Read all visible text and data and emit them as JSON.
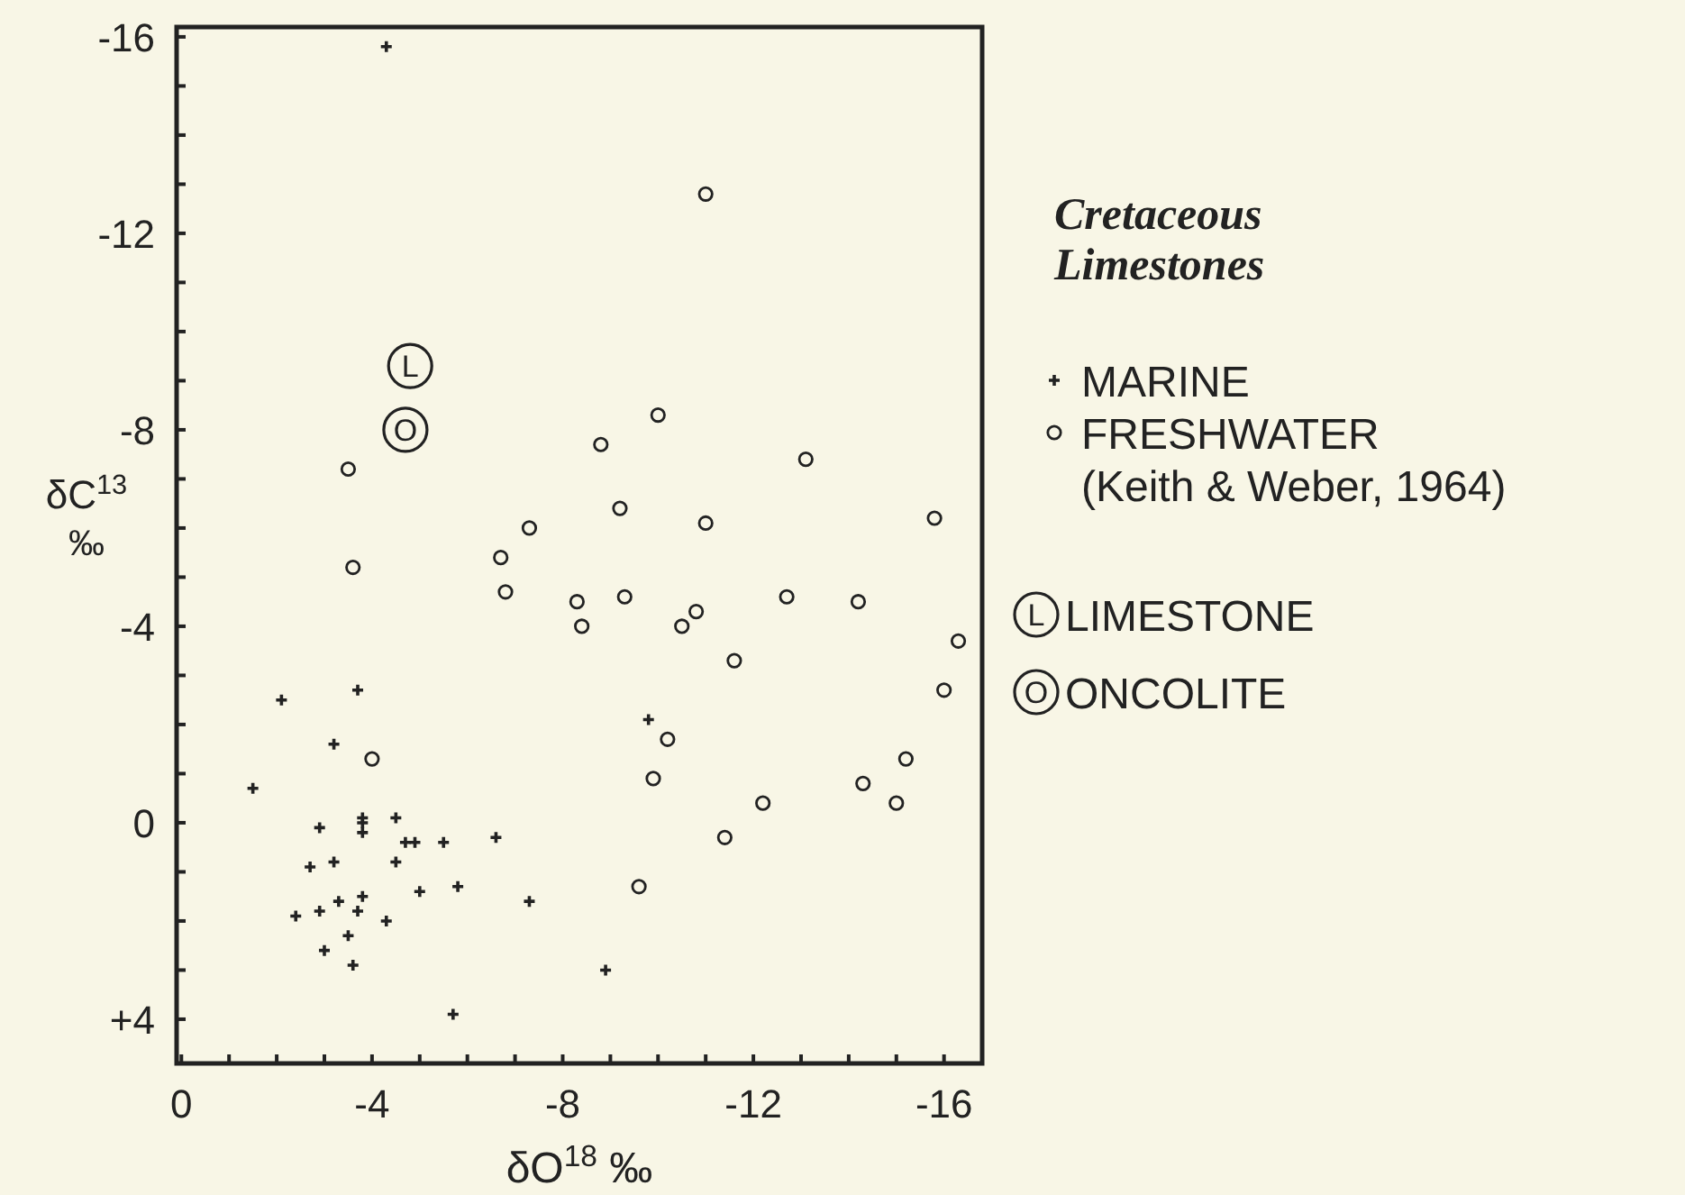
{
  "chart_data": {
    "type": "scatter",
    "xlabel": "δO$^{18}$ ‰",
    "ylabel": "δC$^{13}$ ‰",
    "legend_title": "Cretaceous Limestones",
    "legend": "right",
    "annotations": [
      "(Keith & Weber, 1964)"
    ],
    "xlim": [
      0.1,
      -16.8
    ],
    "ylim": [
      4.9,
      -16.2
    ],
    "xticks": [
      0,
      {
        "value": -1,
        "label": null
      },
      {
        "value": -2,
        "label": null
      },
      {
        "value": -3,
        "label": null
      },
      -4,
      {
        "value": -5,
        "label": null
      },
      {
        "value": -6,
        "label": null
      },
      {
        "value": -7,
        "label": null
      },
      -8,
      {
        "value": -9,
        "label": null
      },
      {
        "value": -10,
        "label": null
      },
      {
        "value": -11,
        "label": null
      },
      -12,
      {
        "value": -13,
        "label": null
      },
      {
        "value": -14,
        "label": null
      },
      {
        "value": -15,
        "label": null
      },
      -16
    ],
    "yticks": [
      -16,
      {
        "value": -15,
        "label": null
      },
      {
        "value": -14,
        "label": null
      },
      {
        "value": -13,
        "label": null
      },
      -12,
      {
        "value": -11,
        "label": null
      },
      {
        "value": -10,
        "label": null
      },
      {
        "value": -9,
        "label": null
      },
      -8,
      {
        "value": -7,
        "label": null
      },
      {
        "value": -6,
        "label": null
      },
      {
        "value": -5,
        "label": null
      },
      -4,
      {
        "value": -3,
        "label": null
      },
      {
        "value": -2,
        "label": null
      },
      {
        "value": -1,
        "label": null
      },
      0,
      {
        "value": 1,
        "label": null
      },
      {
        "value": 2,
        "label": null
      },
      {
        "value": 3,
        "label": null
      },
      {
        "value": 4,
        "label": "+4"
      }
    ],
    "grid": false,
    "series": [
      {
        "name": "MARINE",
        "color": "#222222",
        "marker": "cross",
        "x": [
          -4.3,
          -3.7,
          -2.1,
          -3.2,
          -1.5,
          -9.8,
          -3.8,
          -3.8,
          -3.8,
          -2.9,
          -4.5,
          -4.7,
          -4.9,
          -5.5,
          -6.6,
          -3.2,
          -2.7,
          -4.5,
          -5.8,
          -5.0,
          -3.8,
          -3.3,
          -2.9,
          -3.7,
          -2.4,
          -4.3,
          -7.3,
          -3.5,
          -3.0,
          -3.6,
          -8.9,
          -5.7
        ],
        "values": [
          -15.8,
          -2.7,
          -2.5,
          -1.6,
          -0.7,
          -2.1,
          -0.1,
          0.2,
          0.0,
          0.1,
          -0.1,
          0.4,
          0.4,
          0.4,
          0.3,
          0.8,
          0.9,
          0.8,
          1.3,
          1.4,
          1.5,
          1.6,
          1.8,
          1.8,
          1.9,
          2.0,
          1.6,
          2.3,
          2.6,
          2.9,
          3.0,
          3.9
        ]
      },
      {
        "name": "FRESHWATER",
        "color": "#222222",
        "marker": "circle",
        "x": [
          -11.0,
          -3.5,
          -8.8,
          -10.0,
          -13.1,
          -9.2,
          -7.3,
          -11.0,
          -15.8,
          -3.6,
          -6.7,
          -6.8,
          -8.3,
          -9.3,
          -12.7,
          -14.2,
          -8.4,
          -10.5,
          -10.8,
          -11.6,
          -16.3,
          -16.0,
          -4.0,
          -10.2,
          -9.9,
          -15.2,
          -14.3,
          -15.0,
          -12.2,
          -11.4,
          -9.6
        ],
        "values": [
          -12.8,
          -7.2,
          -7.7,
          -8.3,
          -7.4,
          -6.4,
          -6.0,
          -6.1,
          -6.2,
          -5.2,
          -5.4,
          -4.7,
          -4.5,
          -4.6,
          -4.6,
          -4.5,
          -4.0,
          -4.0,
          -4.3,
          -3.3,
          -3.7,
          -2.7,
          -1.3,
          -1.7,
          -0.9,
          -1.3,
          -0.8,
          -0.4,
          -0.4,
          0.3,
          1.3
        ]
      },
      {
        "name": "LIMESTONE",
        "color": "#222222",
        "marker": "circle",
        "x": [
          -4.8
        ],
        "values": [
          -9.3
        ],
        "value_labels": [
          "L"
        ]
      },
      {
        "name": "ONCOLITE",
        "color": "#222222",
        "marker": "circle",
        "x": [
          -4.7
        ],
        "values": [
          -8.0
        ],
        "value_labels": [
          "O"
        ]
      }
    ]
  }
}
